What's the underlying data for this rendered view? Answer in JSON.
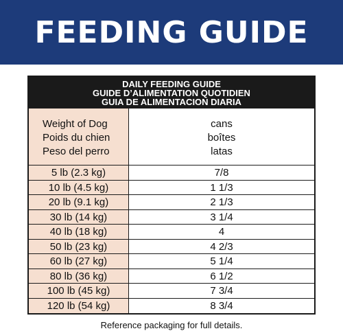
{
  "banner": {
    "title": "FEEDING GUIDE",
    "bg_color": "#1d3b7a"
  },
  "table": {
    "title_lines": [
      "DAILY FEEDING GUIDE",
      "GUIDE D’ALIMENTATION QUOTIDIEN",
      "GUIA DE ALIMENTACION DIARIA"
    ],
    "left_header": [
      "Weight of Dog",
      "Poids du chien",
      "Peso del perro"
    ],
    "right_header": [
      "cans",
      "boîtes",
      "latas"
    ],
    "rows": [
      {
        "weight": "5 lb (2.3 kg)",
        "cans": "7/8"
      },
      {
        "weight": "10 lb (4.5 kg)",
        "cans": "1 1/3"
      },
      {
        "weight": "20 lb (9.1 kg)",
        "cans": "2 1/3"
      },
      {
        "weight": "30 lb (14 kg)",
        "cans": "3 1/4"
      },
      {
        "weight": "40 lb (18 kg)",
        "cans": "4"
      },
      {
        "weight": "50 lb (23 kg)",
        "cans": "4 2/3"
      },
      {
        "weight": "60 lb (27 kg)",
        "cans": "5 1/4"
      },
      {
        "weight": "80 lb (36 kg)",
        "cans": "6 1/2"
      },
      {
        "weight": "100 lb (45 kg)",
        "cans": "7 3/4"
      },
      {
        "weight": "120 lb (54 kg)",
        "cans": "8 3/4"
      }
    ],
    "left_col_color": "#f6dfd0"
  },
  "footnote": "Reference packaging for full details."
}
